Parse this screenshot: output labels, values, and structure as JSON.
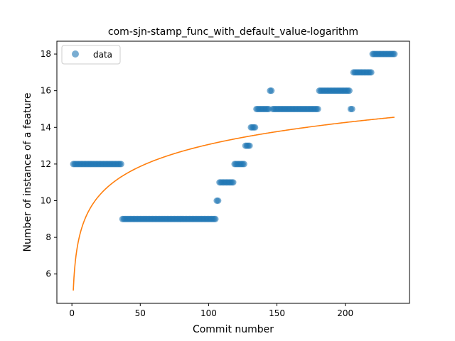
{
  "chart_data": {
    "type": "scatter",
    "title": "com-sjn-stamp_func_with_default_value-logarithm",
    "xlabel": "Commit number",
    "ylabel": "Number of instance of a feature",
    "xlim": [
      -11,
      247
    ],
    "ylim": [
      4.4,
      18.7
    ],
    "xticks": [
      0,
      50,
      100,
      150,
      200
    ],
    "yticks": [
      6,
      8,
      10,
      12,
      14,
      16,
      18
    ],
    "legend": {
      "position": "top-left",
      "entries": [
        "data"
      ]
    },
    "colors": {
      "points": "#1f77b4",
      "fit": "#ff7f0e"
    },
    "series": [
      {
        "name": "data",
        "kind": "points",
        "segments": [
          {
            "x_start": 1,
            "x_end": 36,
            "y": 12
          },
          {
            "x_start": 37,
            "x_end": 105,
            "y": 9
          },
          {
            "x_start": 106,
            "x_end": 107,
            "y": 10
          },
          {
            "x_start": 108,
            "x_end": 114,
            "y": 11
          },
          {
            "x_start": 115,
            "x_end": 118,
            "y": 11
          },
          {
            "x_start": 119,
            "x_end": 126,
            "y": 12
          },
          {
            "x_start": 127,
            "x_end": 130,
            "y": 13
          },
          {
            "x_start": 131,
            "x_end": 134,
            "y": 14
          },
          {
            "x_start": 135,
            "x_end": 144,
            "y": 15
          },
          {
            "x_start": 145,
            "x_end": 146,
            "y": 16
          },
          {
            "x_start": 147,
            "x_end": 180,
            "y": 15
          },
          {
            "x_start": 181,
            "x_end": 203,
            "y": 16
          },
          {
            "x_start": 204,
            "x_end": 205,
            "y": 15
          },
          {
            "x_start": 206,
            "x_end": 219,
            "y": 17
          },
          {
            "x_start": 220,
            "x_end": 236,
            "y": 18
          }
        ]
      },
      {
        "name": "",
        "kind": "line",
        "fit": {
          "model": "logarithm",
          "a": 5.1,
          "b": 1.73,
          "x_start": 1,
          "x_end": 236
        }
      }
    ]
  }
}
